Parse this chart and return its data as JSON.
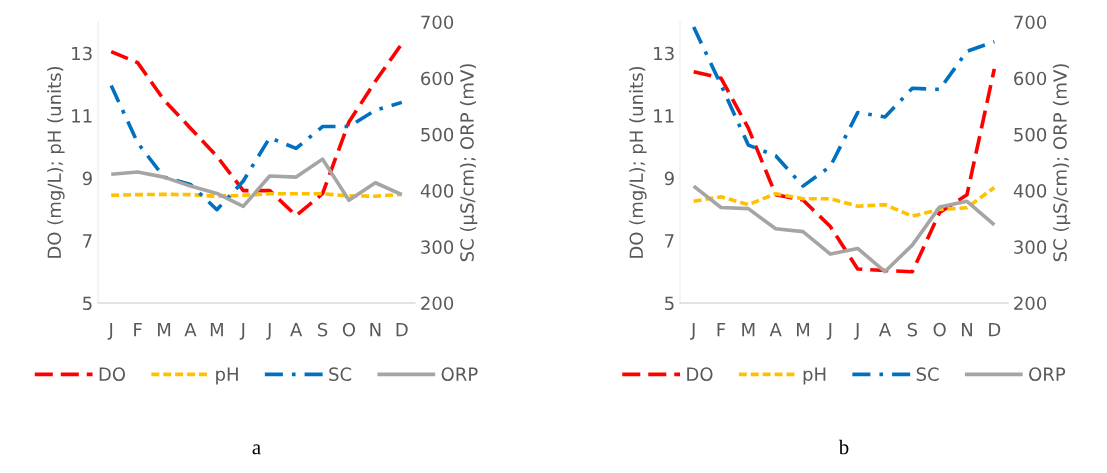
{
  "chart_data": [
    {
      "type": "line",
      "categories": [
        "J",
        "F",
        "M",
        "A",
        "M",
        "J",
        "J",
        "A",
        "S",
        "O",
        "N",
        "D"
      ],
      "ylabel": "DO (mg/L); pH (units)",
      "y2label": "SC (µS/cm); ORP (mV)",
      "ylim": [
        5,
        14
      ],
      "yticks": [
        5,
        7,
        9,
        11,
        13
      ],
      "y2lim": [
        200,
        700
      ],
      "y2ticks": [
        200,
        300,
        400,
        500,
        600,
        700
      ],
      "grid": false,
      "legend": "bottom",
      "annotations": [
        "a"
      ],
      "series": [
        {
          "name": "DO",
          "color": "#ff0000",
          "line_style": "dashed",
          "values": [
            13.05,
            12.7,
            11.5,
            10.6,
            9.7,
            8.6,
            8.6,
            7.8,
            8.5,
            10.8,
            12.1,
            13.3
          ]
        },
        {
          "name": "pH",
          "color": "#ffc000",
          "line_style": "short_dash",
          "values": [
            8.45,
            8.47,
            8.48,
            8.47,
            8.42,
            8.45,
            8.5,
            8.5,
            8.5,
            8.43,
            8.42,
            8.48
          ]
        },
        {
          "name": "SC",
          "color": "#0070c0",
          "line_style": "dashdot",
          "axis": "y2",
          "values": [
            587,
            485,
            424,
            411,
            366,
            417,
            494,
            475,
            514,
            514,
            543,
            557
          ]
        },
        {
          "name": "ORP",
          "color": "#a5a5a5",
          "line_style": "solid",
          "axis": "y2",
          "values": [
            429,
            433,
            424,
            408,
            395,
            372,
            426,
            424,
            456,
            383,
            414,
            393
          ]
        }
      ]
    },
    {
      "type": "line",
      "categories": [
        "J",
        "F",
        "M",
        "A",
        "M",
        "J",
        "J",
        "A",
        "S",
        "O",
        "N",
        "D"
      ],
      "ylabel": "DO (mg/L); pH (units)",
      "y2label": "SC (µS/cm); ORP (mV)",
      "ylim": [
        5,
        14
      ],
      "yticks": [
        5,
        7,
        9,
        11,
        13
      ],
      "y2lim": [
        200,
        700
      ],
      "y2ticks": [
        200,
        300,
        400,
        500,
        600,
        700
      ],
      "grid": false,
      "legend": "bottom",
      "annotations": [
        "b"
      ],
      "series": [
        {
          "name": "DO",
          "color": "#ff0000",
          "line_style": "dashed",
          "values": [
            12.41,
            12.2,
            10.6,
            8.47,
            8.3,
            7.45,
            6.09,
            6.04,
            6.0,
            7.9,
            8.47,
            12.5
          ]
        },
        {
          "name": "pH",
          "color": "#ffc000",
          "line_style": "short_dash",
          "values": [
            8.26,
            8.4,
            8.15,
            8.5,
            8.34,
            8.34,
            8.1,
            8.15,
            7.78,
            8.0,
            8.05,
            8.7
          ]
        },
        {
          "name": "SC",
          "color": "#0070c0",
          "line_style": "dashdot",
          "axis": "y2",
          "values": [
            691,
            588,
            481,
            462,
            408,
            443,
            539,
            531,
            582,
            580,
            648,
            665
          ]
        },
        {
          "name": "ORP",
          "color": "#a5a5a5",
          "line_style": "solid",
          "axis": "y2",
          "values": [
            408,
            370,
            368,
            332,
            327,
            287,
            297,
            256,
            303,
            371,
            381,
            339
          ]
        }
      ]
    }
  ]
}
